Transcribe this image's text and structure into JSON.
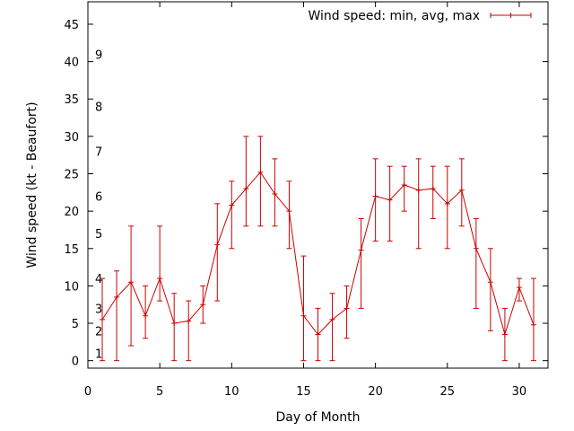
{
  "chart_data": {
    "type": "line",
    "xlabel": "Day of Month",
    "ylabel": "Wind speed (kt - Beaufort)",
    "xlim": [
      0,
      32
    ],
    "ylim": [
      -1,
      48
    ],
    "xticks": [
      0,
      5,
      10,
      15,
      20,
      25,
      30
    ],
    "yticks": [
      0,
      5,
      10,
      15,
      20,
      25,
      30,
      35,
      40,
      45
    ],
    "grid": false,
    "legend": {
      "position": "top-right"
    },
    "series": [
      {
        "name": "Wind speed: min, avg, max",
        "color": "#cc0000",
        "points": [
          {
            "x": 1,
            "y": 5.5,
            "min": 0,
            "max": 11
          },
          {
            "x": 2,
            "y": 8.5,
            "min": 0,
            "max": 12
          },
          {
            "x": 3,
            "y": 10.5,
            "min": 2,
            "max": 18
          },
          {
            "x": 4,
            "y": 6,
            "min": 3,
            "max": 10
          },
          {
            "x": 5,
            "y": 11,
            "min": 8,
            "max": 18
          },
          {
            "x": 6,
            "y": 5,
            "min": 0,
            "max": 9
          },
          {
            "x": 7,
            "y": 5.3,
            "min": 0,
            "max": 8
          },
          {
            "x": 8,
            "y": 7.5,
            "min": 5,
            "max": 10
          },
          {
            "x": 9,
            "y": 15.5,
            "min": 8,
            "max": 21
          },
          {
            "x": 10,
            "y": 20.8,
            "min": 15,
            "max": 24
          },
          {
            "x": 11,
            "y": 23,
            "min": 18,
            "max": 30
          },
          {
            "x": 12,
            "y": 25.2,
            "min": 18,
            "max": 30
          },
          {
            "x": 13,
            "y": 22.3,
            "min": 18,
            "max": 27
          },
          {
            "x": 14,
            "y": 20,
            "min": 15,
            "max": 24
          },
          {
            "x": 15,
            "y": 6,
            "min": 0,
            "max": 14
          },
          {
            "x": 16,
            "y": 3.5,
            "min": 0,
            "max": 7
          },
          {
            "x": 17,
            "y": 5.5,
            "min": 0,
            "max": 9
          },
          {
            "x": 18,
            "y": 7,
            "min": 3,
            "max": 10
          },
          {
            "x": 19,
            "y": 14.8,
            "min": 7,
            "max": 19
          },
          {
            "x": 20,
            "y": 22,
            "min": 16,
            "max": 27
          },
          {
            "x": 21,
            "y": 21.5,
            "min": 16,
            "max": 26
          },
          {
            "x": 22,
            "y": 23.5,
            "min": 20,
            "max": 26
          },
          {
            "x": 23,
            "y": 22.8,
            "min": 15,
            "max": 27
          },
          {
            "x": 24,
            "y": 23,
            "min": 19,
            "max": 26
          },
          {
            "x": 25,
            "y": 21,
            "min": 15,
            "max": 26
          },
          {
            "x": 26,
            "y": 22.8,
            "min": 18,
            "max": 27
          },
          {
            "x": 27,
            "y": 15,
            "min": 7,
            "max": 19
          },
          {
            "x": 28,
            "y": 10.5,
            "min": 4,
            "max": 15
          },
          {
            "x": 29,
            "y": 3.5,
            "min": 0,
            "max": 7
          },
          {
            "x": 30,
            "y": 9.8,
            "min": 8,
            "max": 11
          },
          {
            "x": 31,
            "y": 4.8,
            "min": 0,
            "max": 11
          }
        ]
      }
    ],
    "beaufort_labels": [
      {
        "label": "1",
        "y": 1
      },
      {
        "label": "2",
        "y": 4
      },
      {
        "label": "3",
        "y": 7
      },
      {
        "label": "4",
        "y": 11
      },
      {
        "label": "5",
        "y": 17
      },
      {
        "label": "6",
        "y": 22
      },
      {
        "label": "7",
        "y": 28
      },
      {
        "label": "8",
        "y": 34
      },
      {
        "label": "9",
        "y": 41
      }
    ]
  }
}
